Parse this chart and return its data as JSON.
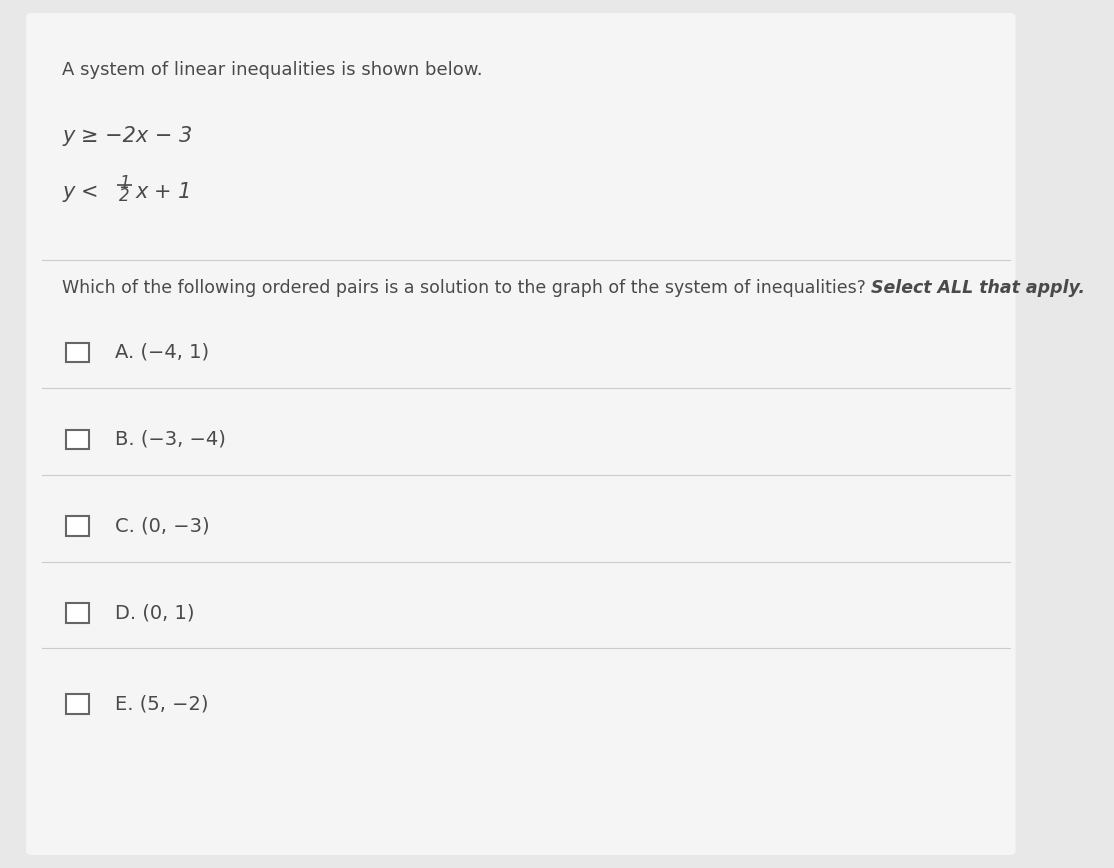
{
  "bg_color": "#e8e8e8",
  "card_color": "#f5f5f5",
  "intro_text": "A system of linear inequalities is shown below.",
  "inequality1": "y ≥ −2x − 3",
  "question_text": "Which of the following ordered pairs is a solution to the graph of the system of inequalities?",
  "question_suffix": "Select ALL that apply.",
  "options": [
    {
      "label": "A.",
      "point": "(−4, 1)"
    },
    {
      "label": "B.",
      "point": "(−3, −4)"
    },
    {
      "label": "C.",
      "point": "(0, −3)"
    },
    {
      "label": "D.",
      "point": "(0, 1)"
    },
    {
      "label": "E.",
      "point": "(5, −2)"
    }
  ],
  "text_color": "#4a4a4a",
  "separator_color": "#cccccc",
  "checkbox_color": "#666666",
  "intro_fontsize": 13,
  "ineq_fontsize": 15,
  "question_fontsize": 12.5,
  "option_fontsize": 14
}
